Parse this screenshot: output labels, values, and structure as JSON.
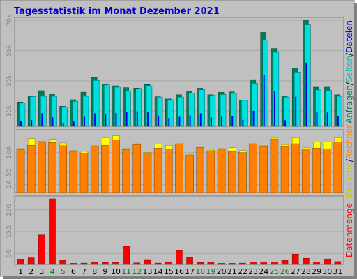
{
  "colors": {
    "frame_bg": "#c0c0c0",
    "grid": "#a0a0a0",
    "title": "#0000cc",
    "anfragen_dark": "#00805a",
    "anfragen": "#00e0e0",
    "seiten_dark": "#006a6a",
    "dateien": "#0000ff",
    "besuche": "#ffff00",
    "rechner": "#ff8000",
    "datenmenge": "#ff0000",
    "label_dark": "#000000",
    "label_green": "#008080",
    "weekend": "#008000"
  },
  "chart_data": [
    {
      "type": "bar",
      "title": "Tagesstatistik im Monat Dezember 2021",
      "ylabel_parts": [
        "Anfragen",
        "/",
        "Seiten",
        "/",
        "Dateien"
      ],
      "ylabel_colors": [
        "#008060",
        "#000000",
        "#00c0c0",
        "#000000",
        "#0000ff"
      ],
      "yticks": [
        "10k",
        "30k",
        "50k",
        "70k"
      ],
      "ylim": [
        0,
        70000
      ],
      "categories": [
        "1",
        "2",
        "3",
        "4",
        "5",
        "6",
        "7",
        "8",
        "9",
        "10",
        "11",
        "12",
        "13",
        "14",
        "15",
        "16",
        "17",
        "18",
        "19",
        "20",
        "21",
        "22",
        "23",
        "24",
        "25",
        "26",
        "27",
        "28",
        "29",
        "30",
        "31"
      ],
      "series": [
        {
          "name": "Anfragen",
          "values": [
            16000,
            20000,
            23500,
            21000,
            13200,
            17500,
            22500,
            32200,
            27800,
            26700,
            25500,
            25200,
            27500,
            19500,
            18000,
            20800,
            23200,
            25100,
            20800,
            22400,
            22700,
            17300,
            30800,
            62000,
            51300,
            20000,
            38300,
            70000,
            25800,
            25800,
            20800
          ]
        },
        {
          "name": "Seiten",
          "values": [
            15300,
            19600,
            19800,
            19800,
            12700,
            16500,
            19800,
            30300,
            27300,
            25800,
            23300,
            25000,
            26700,
            19300,
            17500,
            19300,
            21800,
            24100,
            20500,
            21000,
            21700,
            17100,
            28400,
            57000,
            48800,
            19300,
            35800,
            67000,
            24000,
            23700,
            19800
          ]
        },
        {
          "name": "Dateien",
          "values": [
            3200,
            4100,
            8600,
            5800,
            1900,
            3100,
            6200,
            8600,
            7900,
            8700,
            9500,
            9800,
            9300,
            6400,
            5400,
            6200,
            7100,
            8500,
            5900,
            6300,
            6500,
            4300,
            10200,
            34000,
            23500,
            4000,
            19500,
            42000,
            9300,
            9100,
            6900
          ]
        }
      ]
    },
    {
      "type": "bar",
      "ylabel_parts": [
        "Besuche",
        "/",
        "Rechner"
      ],
      "ylabel_colors": [
        "#c8c800",
        "#000000",
        "#ff8000"
      ],
      "yticks": [
        "20",
        "50",
        "100"
      ],
      "ylim": [
        0,
        150
      ],
      "categories": [
        "1",
        "2",
        "3",
        "4",
        "5",
        "6",
        "7",
        "8",
        "9",
        "10",
        "11",
        "12",
        "13",
        "14",
        "15",
        "16",
        "17",
        "18",
        "19",
        "20",
        "21",
        "22",
        "23",
        "24",
        "25",
        "26",
        "27",
        "28",
        "29",
        "30",
        "31"
      ],
      "series": [
        {
          "name": "Besuche",
          "values": [
            110,
            135,
            128,
            133,
            124,
            105,
            103,
            117,
            137,
            142,
            110,
            122,
            100,
            121,
            118,
            120,
            95,
            108,
            106,
            110,
            112,
            105,
            119,
            118,
            137,
            120,
            137,
            112,
            126,
            126,
            137
          ]
        },
        {
          "name": "Rechner",
          "values": [
            108,
            118,
            126,
            125,
            117,
            103,
            98,
            116,
            118,
            132,
            108,
            120,
            98,
            111,
            109,
            122,
            93,
            113,
            104,
            107,
            102,
            100,
            122,
            115,
            134,
            115,
            122,
            107,
            111,
            109,
            126
          ]
        }
      ]
    },
    {
      "type": "bar",
      "ylabel_parts": [
        "Datenmenge"
      ],
      "ylabel_colors": [
        "#ff0000"
      ],
      "yticks": [
        "5G",
        "15G",
        "25G"
      ],
      "ylim": [
        0,
        30
      ],
      "categories": [
        "1",
        "2",
        "3",
        "4",
        "5",
        "6",
        "7",
        "8",
        "9",
        "10",
        "11",
        "12",
        "13",
        "14",
        "15",
        "16",
        "17",
        "18",
        "19",
        "20",
        "21",
        "22",
        "23",
        "24",
        "25",
        "26",
        "27",
        "28",
        "29",
        "30",
        "31"
      ],
      "series": [
        {
          "name": "Datenmenge",
          "values": [
            2.3,
            3.0,
            13.5,
            30.0,
            1.8,
            0.5,
            0.6,
            1.2,
            0.9,
            0.9,
            8.3,
            0.7,
            1.9,
            0.6,
            1.2,
            6.4,
            3.2,
            0.9,
            1.0,
            0.5,
            0.5,
            0.6,
            1.2,
            1.2,
            1.1,
            1.8,
            4.7,
            2.8,
            1.0,
            2.5,
            1.3
          ]
        }
      ]
    }
  ],
  "x_labels": [
    "1",
    "2",
    "3",
    "4",
    "5",
    "6",
    "7",
    "8",
    "9",
    "10",
    "11",
    "12",
    "13",
    "14",
    "15",
    "16",
    "17",
    "18",
    "19",
    "20",
    "21",
    "22",
    "23",
    "24",
    "25",
    "26",
    "27",
    "28",
    "29",
    "30",
    "31"
  ],
  "weekend_days": [
    4,
    5,
    11,
    12,
    18,
    19,
    25,
    26
  ]
}
